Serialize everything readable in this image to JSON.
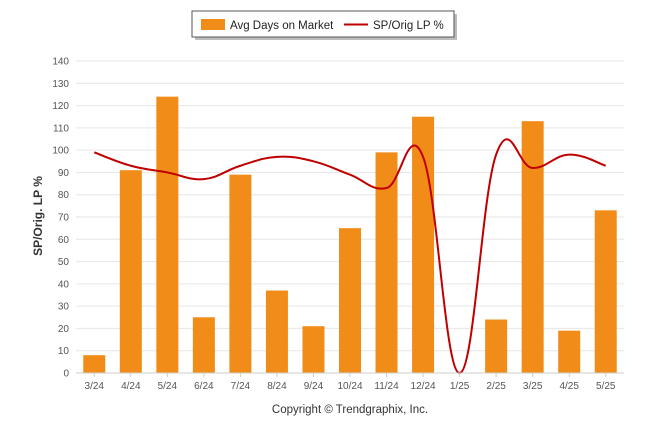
{
  "chart_data": {
    "type": "bar",
    "categories": [
      "3/24",
      "4/24",
      "5/24",
      "6/24",
      "7/24",
      "8/24",
      "9/24",
      "10/24",
      "11/24",
      "12/24",
      "1/25",
      "2/25",
      "3/25",
      "4/25",
      "5/25"
    ],
    "series": [
      {
        "name": "Avg Days on Market",
        "type": "bar",
        "color": "#f28c19",
        "values": [
          8,
          91,
          124,
          25,
          89,
          37,
          21,
          65,
          99,
          115,
          0,
          24,
          113,
          19,
          73
        ]
      },
      {
        "name": "SP/Orig LP %",
        "type": "line",
        "color": "#c00000",
        "values": [
          99,
          93,
          90,
          87,
          93,
          97,
          95,
          89,
          83,
          97,
          0,
          98,
          92,
          98,
          93
        ]
      }
    ],
    "ylabel": "SP/Orig. LP %",
    "xlabel": "",
    "ylim": [
      0,
      140
    ],
    "yticks": [
      0,
      10,
      20,
      30,
      40,
      50,
      60,
      70,
      80,
      90,
      100,
      110,
      120,
      130,
      140
    ],
    "grid": true,
    "legend_position": "top-center"
  },
  "footer": {
    "copyright": "Copyright © Trendgraphix, Inc."
  }
}
